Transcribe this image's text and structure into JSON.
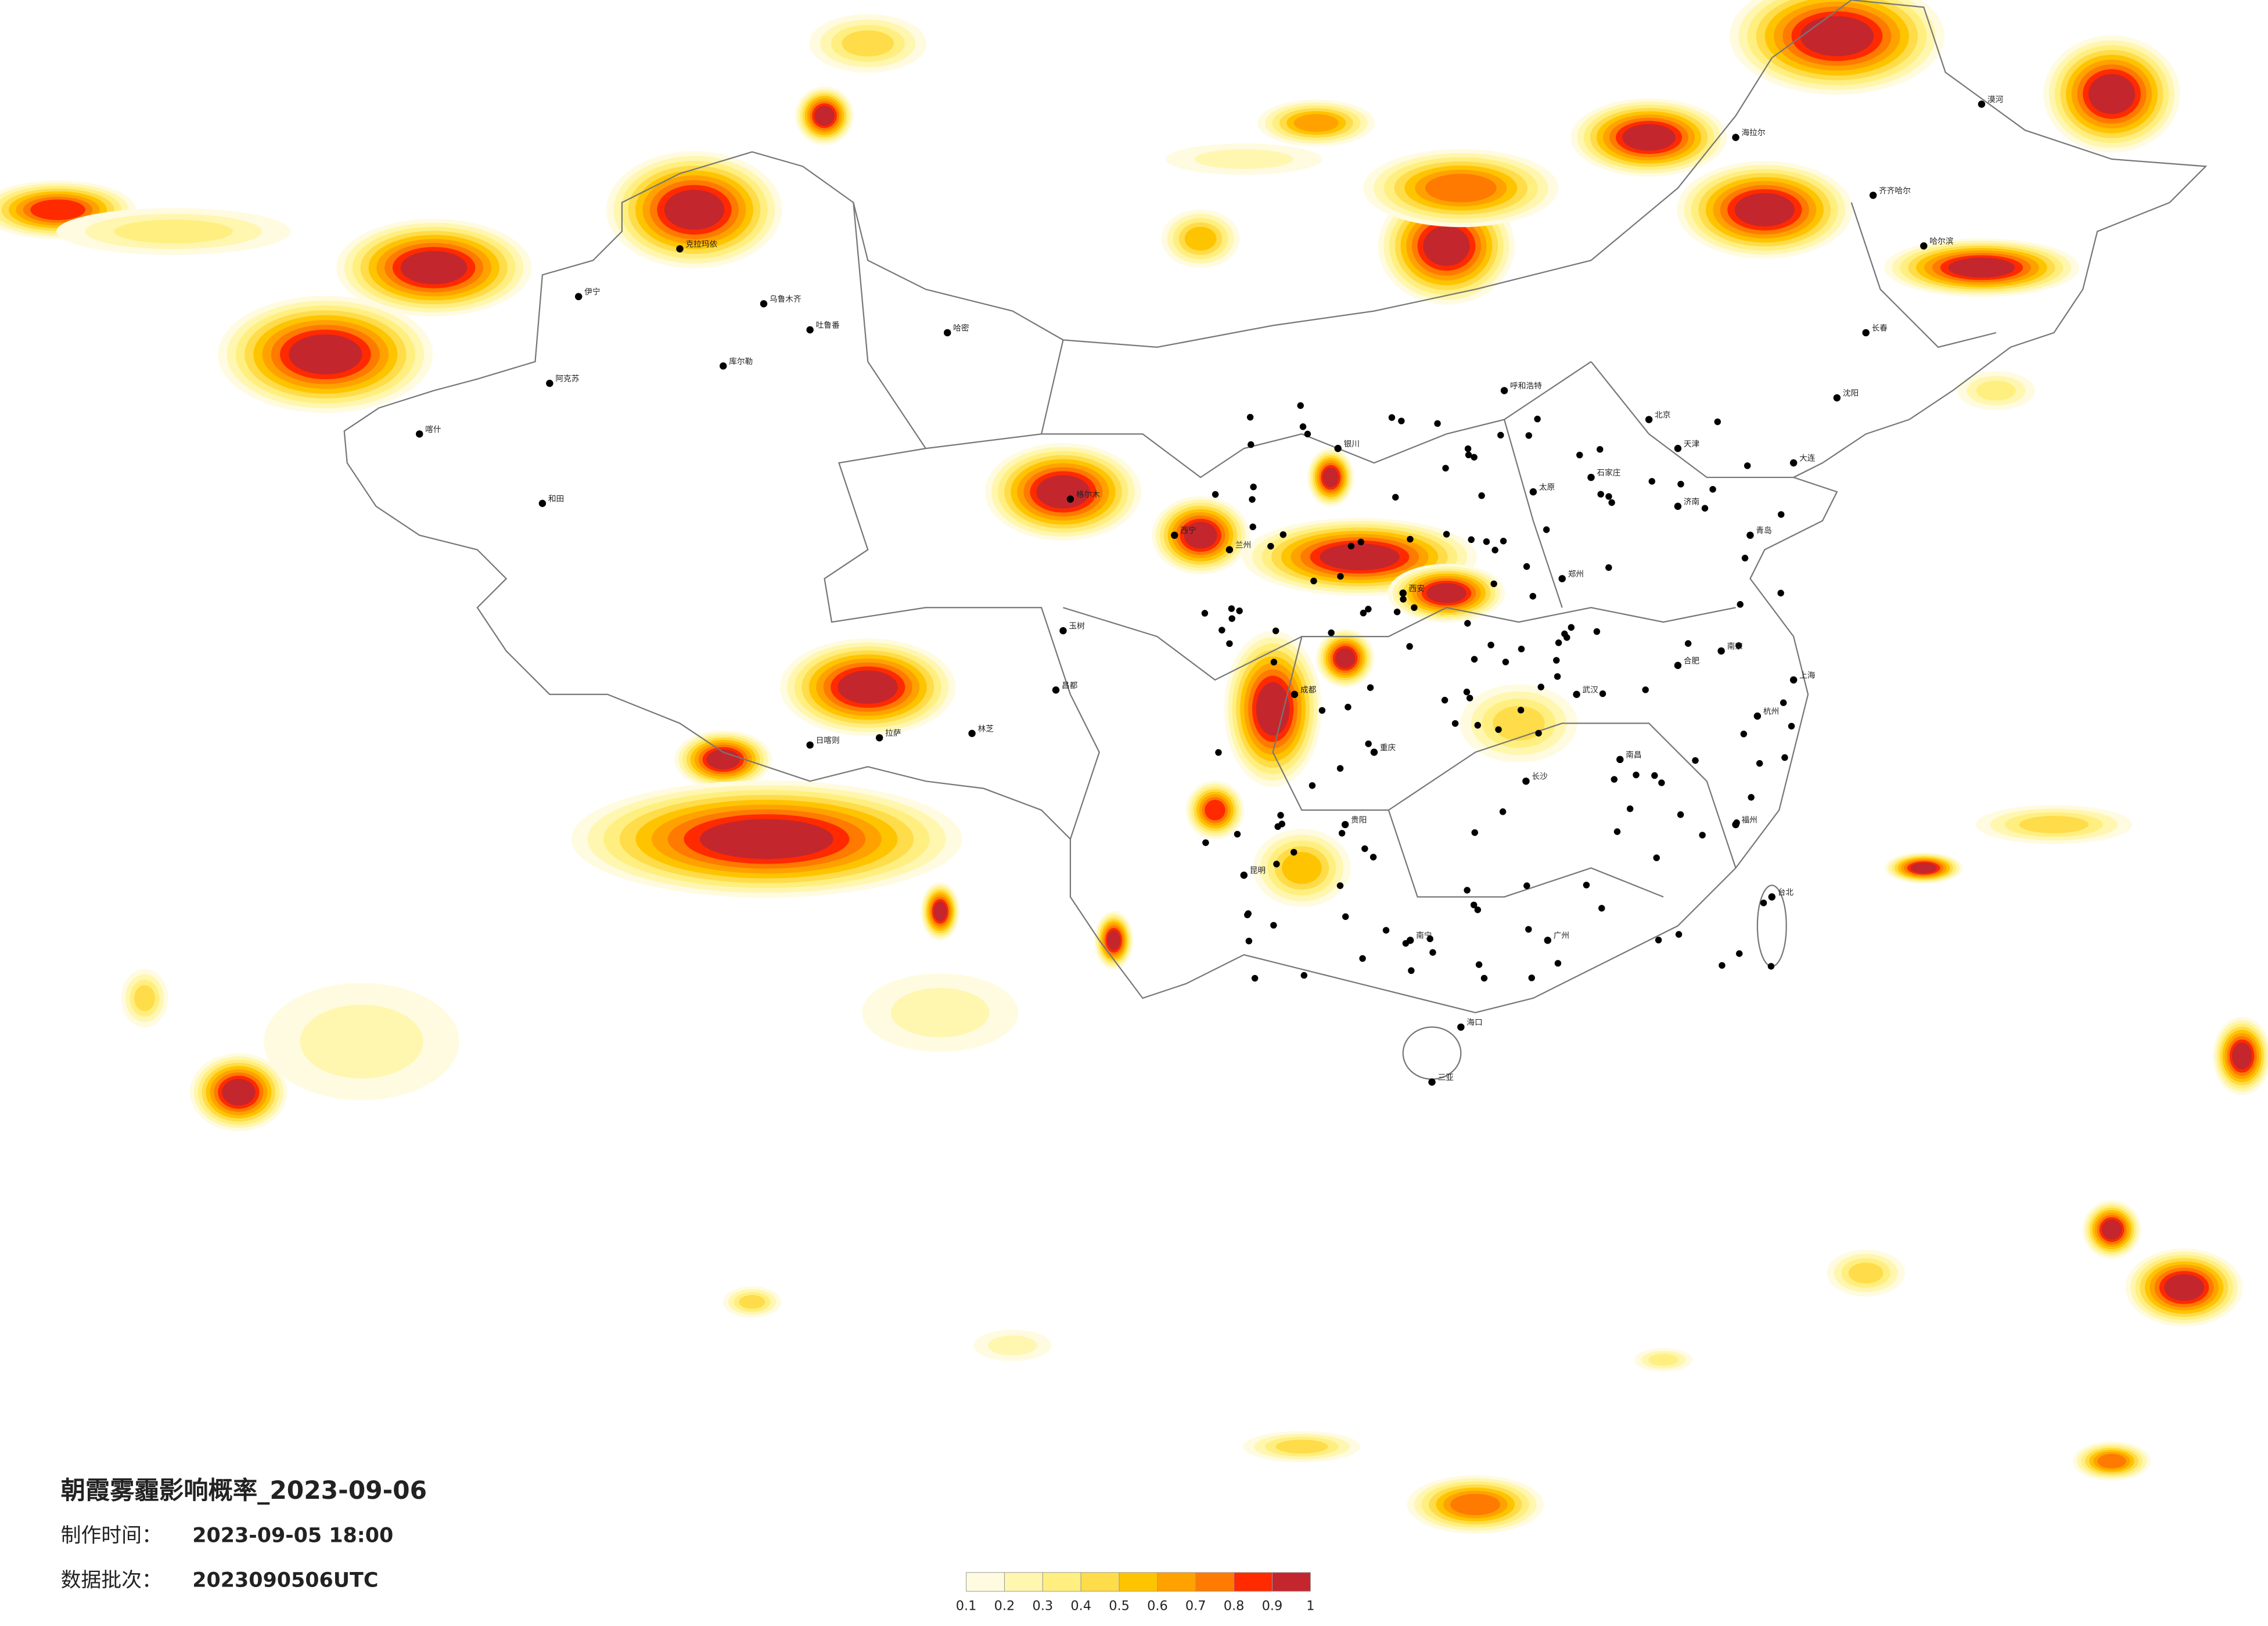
{
  "title": "朝霞雾霾影响概率_2023-09-06",
  "made_time_label": "制作时间：",
  "made_time": "2023-09-05 18:00",
  "batch_label": "数据批次：",
  "batch": "2023090506UTC",
  "legend": {
    "levels": [
      0.1,
      0.2,
      0.3,
      0.4,
      0.5,
      0.6,
      0.7,
      0.8,
      0.9,
      1
    ],
    "colors": [
      "#fffbe0",
      "#fff6b0",
      "#ffef80",
      "#ffdc4a",
      "#ffc400",
      "#ffa200",
      "#ff7a00",
      "#ff2a00",
      "#c4262e"
    ]
  },
  "cities": [
    "乌鲁木齐",
    "伊宁",
    "阿克苏",
    "喀什",
    "和田",
    "库尔勒",
    "哈密",
    "吐鲁番",
    "克拉玛依",
    "拉萨",
    "日喀则",
    "林芝",
    "昌都",
    "玉树",
    "格尔木",
    "西宁",
    "兰州",
    "银川",
    "呼和浩特",
    "北京",
    "天津",
    "石家庄",
    "太原",
    "郑州",
    "济南",
    "西安",
    "成都",
    "重庆",
    "贵阳",
    "昆明",
    "南宁",
    "广州",
    "长沙",
    "武汉",
    "南昌",
    "合肥",
    "南京",
    "上海",
    "杭州",
    "福州",
    "台北",
    "海口",
    "三亚",
    "哈尔滨",
    "长春",
    "沈阳",
    "大连",
    "漠河",
    "齐齐哈尔",
    "海拉尔",
    "青岛"
  ]
}
